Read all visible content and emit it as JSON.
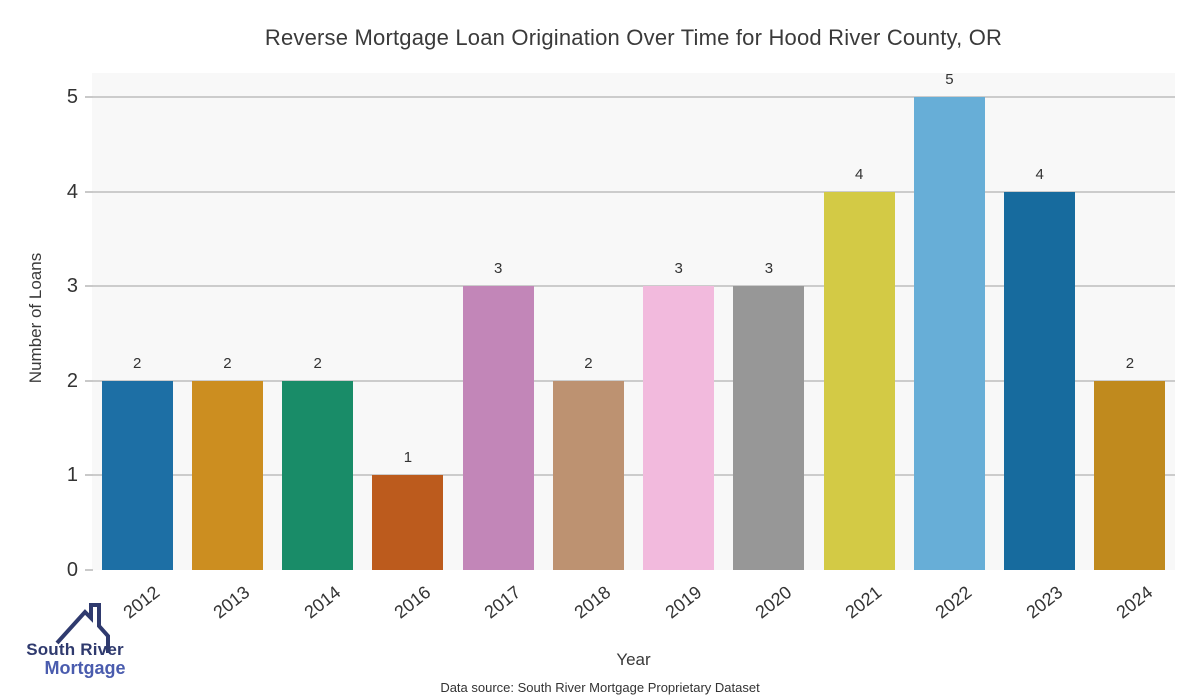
{
  "title": "Reverse Mortgage Loan Origination Over Time for Hood River County, OR",
  "axes": {
    "x_label": "Year",
    "y_label": "Number of Loans",
    "y_ticks": [
      0,
      1,
      2,
      3,
      4,
      5
    ]
  },
  "footer": {
    "source": "Data source: South River Mortgage Proprietary Dataset"
  },
  "logo": {
    "line1": "South River",
    "line2": "Mortgage",
    "roof_color": "#2f3a6e",
    "line1_color": "#2f3a6e",
    "line2_color": "#4a5cae"
  },
  "chart_data": {
    "type": "bar",
    "title": "Reverse Mortgage Loan Origination Over Time for Hood River County, OR",
    "xlabel": "Year",
    "ylabel": "Number of Loans",
    "categories": [
      "2012",
      "2013",
      "2014",
      "2016",
      "2017",
      "2018",
      "2019",
      "2020",
      "2021",
      "2022",
      "2023",
      "2024"
    ],
    "values": [
      2,
      2,
      2,
      1,
      3,
      2,
      3,
      3,
      4,
      5,
      4,
      2
    ],
    "bar_colors": [
      "#1d6fa5",
      "#cc8e20",
      "#198c68",
      "#bc5b1d",
      "#c286b8",
      "#bd9271",
      "#f2badd",
      "#979797",
      "#d3ca45",
      "#67aed7",
      "#176b9e",
      "#c08a1e"
    ],
    "value_labels_shown": true,
    "ylim": [
      0,
      5
    ],
    "grid": "horizontal",
    "legend": "none",
    "plot_bg": "#f8f8f8",
    "gridline_color": "#cccccc"
  }
}
